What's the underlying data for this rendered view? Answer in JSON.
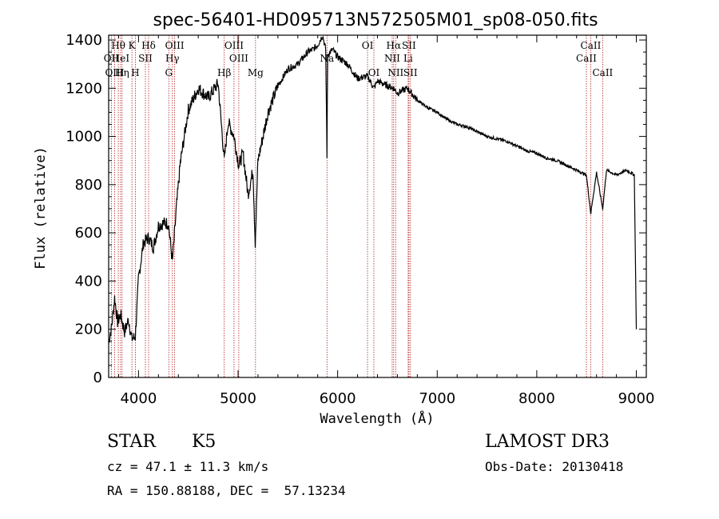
{
  "chart_data": {
    "type": "line",
    "title": "spec-56401-HD095713N572505M01_sp08-050.fits",
    "xlabel": "Wavelength (Å)",
    "ylabel": "Flux (relative)",
    "xlim": [
      3700,
      9100
    ],
    "ylim": [
      0,
      1420
    ],
    "x_ticks": [
      4000,
      5000,
      6000,
      7000,
      8000,
      9000
    ],
    "y_ticks": [
      0,
      200,
      400,
      600,
      800,
      1000,
      1200,
      1400
    ],
    "grid": false,
    "legend": "none",
    "spectrum_color": "#000000",
    "line_marker_color": "#b22222",
    "spectrum": {
      "x": [
        3700,
        3730,
        3760,
        3790,
        3820,
        3860,
        3900,
        3933,
        3968,
        4000,
        4050,
        4101,
        4150,
        4200,
        4250,
        4300,
        4340,
        4380,
        4420,
        4500,
        4600,
        4700,
        4800,
        4861,
        4900,
        4959,
        5007,
        5050,
        5100,
        5150,
        5172,
        5200,
        5250,
        5300,
        5400,
        5500,
        5600,
        5700,
        5750,
        5800,
        5850,
        5880,
        5893,
        5900,
        5950,
        6000,
        6100,
        6200,
        6300,
        6364,
        6400,
        6500,
        6563,
        6600,
        6700,
        6800,
        6900,
        7000,
        7100,
        7200,
        7300,
        7400,
        7500,
        7600,
        7700,
        7800,
        7900,
        8000,
        8100,
        8200,
        8300,
        8400,
        8498,
        8542,
        8600,
        8662,
        8700,
        8800,
        8900,
        8980,
        9000
      ],
      "y": [
        150,
        210,
        330,
        230,
        260,
        190,
        240,
        160,
        170,
        410,
        560,
        580,
        540,
        630,
        640,
        640,
        480,
        700,
        890,
        1110,
        1200,
        1160,
        1220,
        900,
        1060,
        1000,
        880,
        930,
        760,
        860,
        560,
        900,
        1000,
        1100,
        1210,
        1280,
        1300,
        1350,
        1360,
        1380,
        1420,
        1360,
        920,
        1340,
        1360,
        1330,
        1300,
        1240,
        1250,
        1200,
        1230,
        1210,
        1200,
        1180,
        1200,
        1150,
        1120,
        1100,
        1070,
        1050,
        1040,
        1020,
        1000,
        990,
        980,
        960,
        940,
        930,
        910,
        900,
        880,
        860,
        840,
        680,
        850,
        700,
        860,
        840,
        860,
        840,
        200
      ]
    },
    "line_markers": [
      {
        "label": "OII",
        "wavelength": 3727,
        "row": 2
      },
      {
        "label": "OIII",
        "wavelength": 3760,
        "row": 3
      },
      {
        "label": "Hθ",
        "wavelength": 3797,
        "row": 1
      },
      {
        "label": "HeI",
        "wavelength": 3820,
        "row": 2
      },
      {
        "label": "Hη",
        "wavelength": 3835,
        "row": 3
      },
      {
        "label": "K",
        "wavelength": 3934,
        "row": 1
      },
      {
        "label": "SII",
        "wavelength": 4069,
        "row": 2
      },
      {
        "label": "H",
        "wavelength": 3968,
        "row": 3
      },
      {
        "label": "Hδ",
        "wavelength": 4101,
        "row": 1
      },
      {
        "label": "OIII",
        "wavelength": 4363,
        "row": 1
      },
      {
        "label": "Hγ",
        "wavelength": 4340,
        "row": 2
      },
      {
        "label": "G",
        "wavelength": 4304,
        "row": 3
      },
      {
        "label": "Hβ",
        "wavelength": 4861,
        "row": 3
      },
      {
        "label": "OIII",
        "wavelength": 4959,
        "row": 1
      },
      {
        "label": "OIII",
        "wavelength": 5007,
        "row": 2
      },
      {
        "label": "Mg",
        "wavelength": 5175,
        "row": 3
      },
      {
        "label": "Na",
        "wavelength": 5893,
        "row": 2
      },
      {
        "label": "OI",
        "wavelength": 6300,
        "row": 1
      },
      {
        "label": "OI",
        "wavelength": 6364,
        "row": 3
      },
      {
        "label": "Hα",
        "wavelength": 6563,
        "row": 1
      },
      {
        "label": "NII",
        "wavelength": 6548,
        "row": 2
      },
      {
        "label": "NII",
        "wavelength": 6583,
        "row": 3
      },
      {
        "label": "SII",
        "wavelength": 6716,
        "row": 1
      },
      {
        "label": "Li",
        "wavelength": 6708,
        "row": 2
      },
      {
        "label": "SII",
        "wavelength": 6731,
        "row": 3
      },
      {
        "label": "CaII",
        "wavelength": 8498,
        "row": 2
      },
      {
        "label": "CaII",
        "wavelength": 8542,
        "row": 1
      },
      {
        "label": "CaII",
        "wavelength": 8662,
        "row": 3
      }
    ]
  },
  "info": {
    "class": "STAR",
    "subclass": "K5",
    "survey": "LAMOST DR3",
    "cz": "cz = 47.1 ± 11.3 km/s",
    "obs_date": "Obs-Date: 20130418",
    "coords": "RA = 150.88188, DEC =  57.13234"
  }
}
